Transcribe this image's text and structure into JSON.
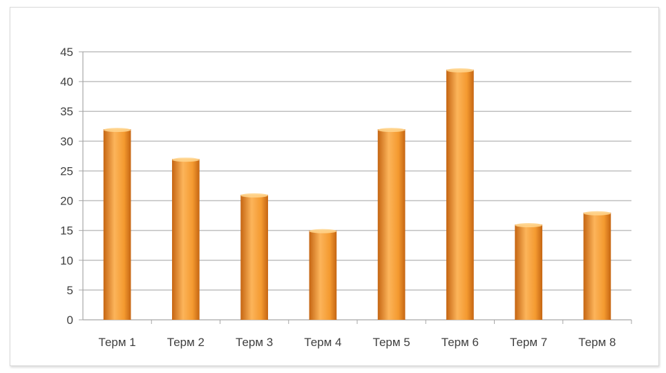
{
  "chart_data": {
    "type": "bar",
    "categories": [
      "Терм 1",
      "Терм 2",
      "Терм 3",
      "Терм 4",
      "Терм 5",
      "Терм 6",
      "Терм 7",
      "Терм 8"
    ],
    "values": [
      32,
      27,
      21,
      15,
      32,
      42,
      16,
      18
    ],
    "yticks": [
      "0",
      "5",
      "10",
      "15",
      "20",
      "25",
      "30",
      "35",
      "40",
      "45"
    ],
    "ylim": [
      0,
      45
    ],
    "grid": true,
    "legend": "none",
    "colors": {
      "bar_light": "#fcb45a",
      "bar_mid": "#f49a30",
      "bar_dark": "#c56512",
      "bar_top": "#ffd48c",
      "grid": "#bfbfbf",
      "axis": "#a6a6a6",
      "text": "#404040"
    }
  }
}
